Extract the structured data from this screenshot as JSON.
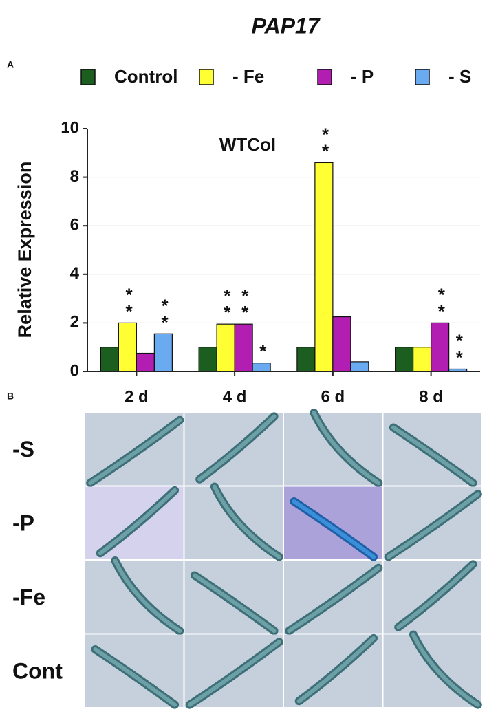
{
  "figure": {
    "title": "PAP17",
    "panel_labels": [
      "A",
      "B"
    ]
  },
  "chart_data": {
    "type": "bar",
    "title": "WTCol",
    "ylabel": "Relative Expression",
    "categories": [
      "2 d",
      "4 d",
      "6 d",
      "8 d"
    ],
    "series": [
      {
        "name": "Control",
        "color": "#1b5e20",
        "values": [
          1.0,
          1.0,
          1.0,
          1.0
        ],
        "significance": [
          null,
          null,
          null,
          null
        ]
      },
      {
        "name": "- Fe",
        "color": "#ffff33",
        "values": [
          2.0,
          1.95,
          8.6,
          1.0
        ],
        "significance": [
          "**",
          "**",
          "**",
          null
        ]
      },
      {
        "name": "- P",
        "color": "#b21db2",
        "values": [
          0.75,
          1.95,
          2.25,
          2.0
        ],
        "significance": [
          null,
          "**",
          null,
          "**"
        ]
      },
      {
        "name": "- S",
        "color": "#6aaaf0",
        "values": [
          1.55,
          0.35,
          0.4,
          0.1
        ],
        "significance": [
          "**",
          "*",
          null,
          "**"
        ]
      }
    ],
    "ylim": [
      0,
      10
    ],
    "yticks": [
      0,
      2,
      4,
      6,
      8,
      10
    ],
    "grid": true,
    "legend": "top"
  },
  "panel_b": {
    "rows": [
      "-S",
      "-P",
      "-Fe",
      "Cont"
    ]
  }
}
